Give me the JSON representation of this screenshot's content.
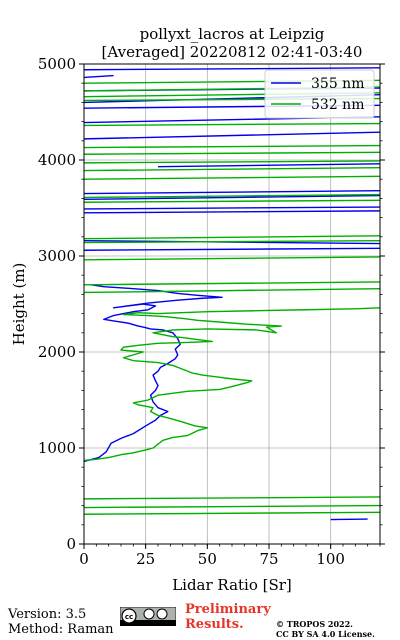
{
  "chart_data": {
    "type": "line",
    "title": [
      "pollyxt_lacros at Leipzig",
      "[Averaged] 20220812 02:41-03:40"
    ],
    "xlabel": "Lidar Ratio [Sr]",
    "ylabel": "Height (m)",
    "xlim": [
      0,
      120
    ],
    "ylim": [
      0,
      5000
    ],
    "xticks": [
      0,
      25,
      50,
      75,
      100
    ],
    "yticks": [
      0,
      1000,
      2000,
      3000,
      4000,
      5000
    ],
    "grid": true,
    "legend_position": "top-right",
    "series": [
      {
        "name": "355 nm",
        "color": "#0000ee",
        "points": [
          [
            0,
            860
          ],
          [
            6,
            900
          ],
          [
            9,
            960
          ],
          [
            11,
            1050
          ],
          [
            15,
            1100
          ],
          [
            20,
            1150
          ],
          [
            25,
            1230
          ],
          [
            29,
            1290
          ],
          [
            31,
            1340
          ],
          [
            34,
            1380
          ],
          [
            30,
            1420
          ],
          [
            28,
            1480
          ],
          [
            27,
            1550
          ],
          [
            29,
            1600
          ],
          [
            30,
            1650
          ],
          [
            29,
            1700
          ],
          [
            28,
            1760
          ],
          [
            30,
            1800
          ],
          [
            31,
            1840
          ],
          [
            34,
            1880
          ],
          [
            37,
            1930
          ],
          [
            38,
            1970
          ],
          [
            37,
            2030
          ],
          [
            39,
            2080
          ],
          [
            38,
            2140
          ],
          [
            36,
            2200
          ],
          [
            32,
            2230
          ],
          [
            27,
            2240
          ],
          [
            24,
            2260
          ],
          [
            22,
            2270
          ],
          [
            18,
            2300
          ],
          [
            13,
            2320
          ],
          [
            8,
            2340
          ],
          [
            12,
            2380
          ],
          [
            20,
            2420
          ],
          [
            26,
            2440
          ],
          [
            29,
            2480
          ],
          [
            24,
            2500
          ],
          [
            12,
            2460
          ],
          [
            26,
            2510
          ],
          [
            38,
            2540
          ],
          [
            48,
            2560
          ],
          [
            56,
            2570
          ],
          [
            46,
            2590
          ],
          [
            38,
            2610
          ],
          [
            30,
            2640
          ],
          [
            20,
            2660
          ],
          [
            8,
            2680
          ],
          [
            3,
            2700
          ]
        ],
        "layer_values": [
          [
            100,
            255
          ],
          [
            115,
            260
          ],
          [
            0,
            3060
          ],
          [
            120,
            3080
          ],
          [
            120,
            3130
          ],
          [
            0,
            3160
          ],
          [
            0,
            3450
          ],
          [
            120,
            3470
          ],
          [
            0,
            3490
          ],
          [
            120,
            3510
          ],
          [
            0,
            3590
          ],
          [
            120,
            3630
          ],
          [
            0,
            3650
          ],
          [
            120,
            3680
          ],
          [
            30,
            3930
          ],
          [
            120,
            3960
          ],
          [
            0,
            4220
          ],
          [
            120,
            4290
          ],
          [
            0,
            4390
          ],
          [
            120,
            4450
          ],
          [
            0,
            4540
          ],
          [
            120,
            4570
          ],
          [
            0,
            4600
          ],
          [
            120,
            4680
          ],
          [
            0,
            4720
          ],
          [
            120,
            4750
          ],
          [
            0,
            4860
          ],
          [
            12,
            4880
          ],
          [
            0,
            4940
          ],
          [
            120,
            4960
          ],
          [
            0,
            4990
          ]
        ]
      },
      {
        "name": "532 nm",
        "color": "#00b000",
        "points": [
          [
            0,
            870
          ],
          [
            4,
            880
          ],
          [
            10,
            900
          ],
          [
            15,
            930
          ],
          [
            20,
            950
          ],
          [
            25,
            980
          ],
          [
            28,
            1000
          ],
          [
            30,
            1040
          ],
          [
            32,
            1080
          ],
          [
            36,
            1110
          ],
          [
            42,
            1130
          ],
          [
            46,
            1180
          ],
          [
            50,
            1210
          ],
          [
            45,
            1230
          ],
          [
            40,
            1270
          ],
          [
            36,
            1300
          ],
          [
            30,
            1340
          ],
          [
            27,
            1380
          ],
          [
            28,
            1420
          ],
          [
            22,
            1450
          ],
          [
            20,
            1470
          ],
          [
            26,
            1500
          ],
          [
            30,
            1550
          ],
          [
            42,
            1590
          ],
          [
            55,
            1610
          ],
          [
            60,
            1640
          ],
          [
            66,
            1680
          ],
          [
            68,
            1700
          ],
          [
            60,
            1720
          ],
          [
            54,
            1740
          ],
          [
            48,
            1760
          ],
          [
            44,
            1780
          ],
          [
            40,
            1820
          ],
          [
            36,
            1860
          ],
          [
            30,
            1890
          ],
          [
            20,
            1910
          ],
          [
            16,
            1940
          ],
          [
            20,
            1970
          ],
          [
            24,
            2000
          ],
          [
            15,
            2020
          ],
          [
            16,
            2050
          ],
          [
            22,
            2070
          ],
          [
            30,
            2090
          ],
          [
            42,
            2100
          ],
          [
            52,
            2110
          ],
          [
            46,
            2130
          ],
          [
            40,
            2150
          ],
          [
            36,
            2160
          ],
          [
            28,
            2200
          ],
          [
            36,
            2230
          ],
          [
            50,
            2240
          ],
          [
            70,
            2230
          ],
          [
            78,
            2200
          ],
          [
            74,
            2260
          ],
          [
            80,
            2270
          ],
          [
            66,
            2290
          ],
          [
            56,
            2310
          ],
          [
            46,
            2330
          ],
          [
            40,
            2350
          ],
          [
            32,
            2370
          ],
          [
            26,
            2380
          ],
          [
            16,
            2390
          ],
          [
            22,
            2410
          ],
          [
            30,
            2400
          ],
          [
            50,
            2420
          ],
          [
            70,
            2430
          ],
          [
            90,
            2440
          ],
          [
            110,
            2450
          ],
          [
            120,
            2460
          ]
        ],
        "layer_values": [
          [
            0,
            310
          ],
          [
            120,
            330
          ],
          [
            0,
            380
          ],
          [
            120,
            400
          ],
          [
            0,
            470
          ],
          [
            120,
            490
          ],
          [
            0,
            2620
          ],
          [
            120,
            2660
          ],
          [
            0,
            2700
          ],
          [
            120,
            2730
          ],
          [
            0,
            2960
          ],
          [
            120,
            2990
          ],
          [
            0,
            3140
          ],
          [
            120,
            3160
          ],
          [
            0,
            3180
          ],
          [
            120,
            3210
          ],
          [
            0,
            3560
          ],
          [
            120,
            3580
          ],
          [
            0,
            3610
          ],
          [
            120,
            3640
          ],
          [
            0,
            3800
          ],
          [
            120,
            3830
          ],
          [
            0,
            3890
          ],
          [
            120,
            3920
          ],
          [
            0,
            3970
          ],
          [
            120,
            3990
          ],
          [
            0,
            4060
          ],
          [
            120,
            4080
          ],
          [
            0,
            4130
          ],
          [
            120,
            4150
          ],
          [
            0,
            4360
          ],
          [
            120,
            4380
          ],
          [
            0,
            4620
          ],
          [
            120,
            4640
          ],
          [
            0,
            4660
          ],
          [
            120,
            4700
          ],
          [
            0,
            4720
          ],
          [
            120,
            4760
          ],
          [
            0,
            4800
          ],
          [
            120,
            4830
          ]
        ]
      }
    ]
  },
  "footer": {
    "version": "Version: 3.5",
    "method": "Method: Raman",
    "preliminary_line1": "Preliminary",
    "preliminary_line2": "Results.",
    "copyright_line1": "© TROPOS 2022.",
    "copyright_line2": "CC BY SA 4.0 License.",
    "license_logo_text": "cc"
  }
}
